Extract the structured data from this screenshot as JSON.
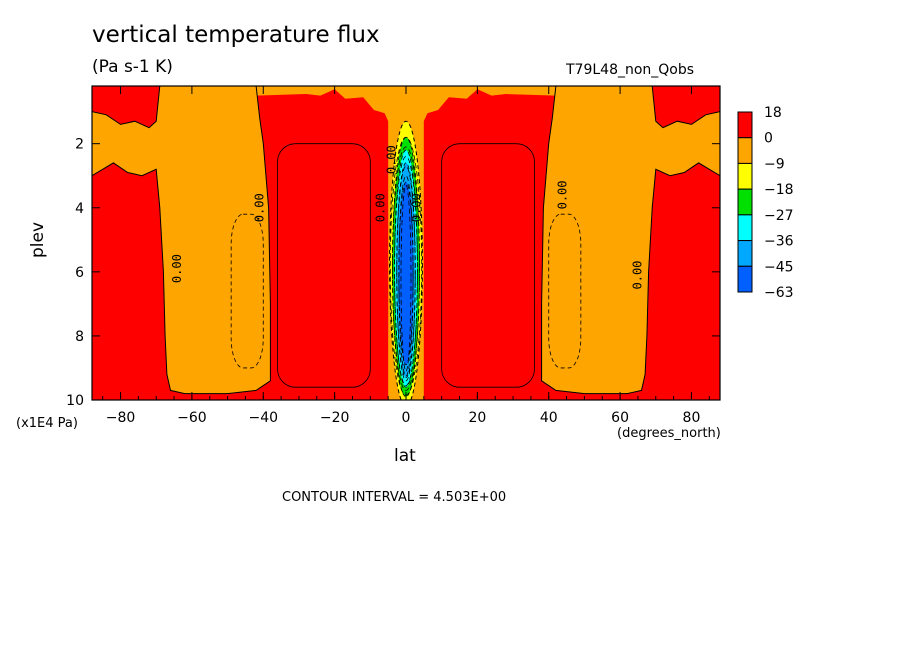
{
  "chart_data": {
    "type": "heatmap",
    "title": "vertical temperature flux",
    "units": "(Pa s-1 K)",
    "run_label": "T79L48_non_Qobs",
    "xlabel": "lat",
    "xunits": "(degrees_north)",
    "ylabel": "plev",
    "yunits": "(x1E4 Pa)",
    "xlim": [
      -88,
      88
    ],
    "ylim": [
      10,
      0.2
    ],
    "x_ticks": [
      -80,
      -60,
      -40,
      -20,
      0,
      20,
      40,
      60,
      80
    ],
    "x_tick_labels": [
      "−80",
      "−60",
      "−40",
      "−20",
      "0",
      "20",
      "40",
      "60",
      "80"
    ],
    "y_ticks": [
      2,
      4,
      6,
      8,
      10
    ],
    "y_tick_labels": [
      "2",
      "4",
      "6",
      "8",
      "10"
    ],
    "colorbar": {
      "labels": [
        "18",
        "0",
        "−9",
        "−18",
        "−27",
        "−36",
        "−45",
        "−63"
      ],
      "colors": [
        "#ff0000",
        "#ffa500",
        "#ffff00",
        "#00e000",
        "#00ffff",
        "#00a8ff",
        "#0060ff"
      ]
    },
    "contour_labels": [
      "0.00",
      "0.00",
      "0.00",
      "0.00",
      "0.00",
      "0.00",
      "0.00"
    ],
    "contour_interval_text": "CONTOUR INTERVAL = 4.503E+00",
    "regions": {
      "red_inner_columns_lat": [
        [
          -37,
          -5
        ],
        [
          5,
          37
        ]
      ],
      "orange_mid_bands_lat": [
        [
          -67,
          -37
        ],
        [
          37,
          67
        ]
      ],
      "negative_core_lat": [
        -5,
        5
      ]
    }
  }
}
